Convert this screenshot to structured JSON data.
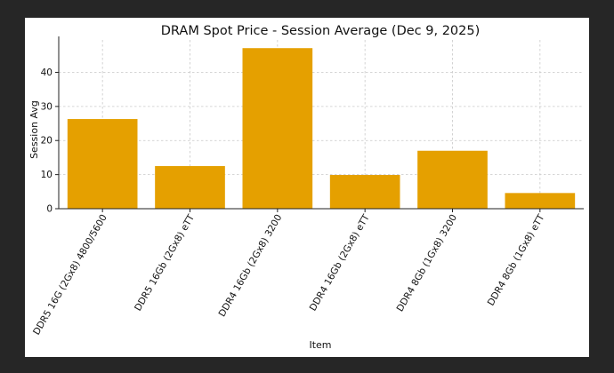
{
  "chart_data": {
    "type": "bar",
    "title": "DRAM Spot Price - Session Average (Dec 9, 2025)",
    "xlabel": "Item",
    "ylabel": "Session Avg",
    "categories": [
      "DDR5 16G (2Gx8) 4800/5600",
      "DDR5 16Gb (2Gx8) eTT",
      "DDR4 16Gb (2Gx8) 3200",
      "DDR4 16Gb (2Gx8) eTT",
      "DDR4 8Gb (1Gx8) 3200",
      "DDR4 8Gb (1Gx8) eTT"
    ],
    "values": [
      26.3,
      12.5,
      47.1,
      9.9,
      17.0,
      4.6
    ],
    "ylim": [
      0,
      49.5
    ],
    "yticks": [
      0,
      10,
      20,
      30,
      40
    ],
    "grid": true,
    "bar_color": "#e5a000"
  }
}
